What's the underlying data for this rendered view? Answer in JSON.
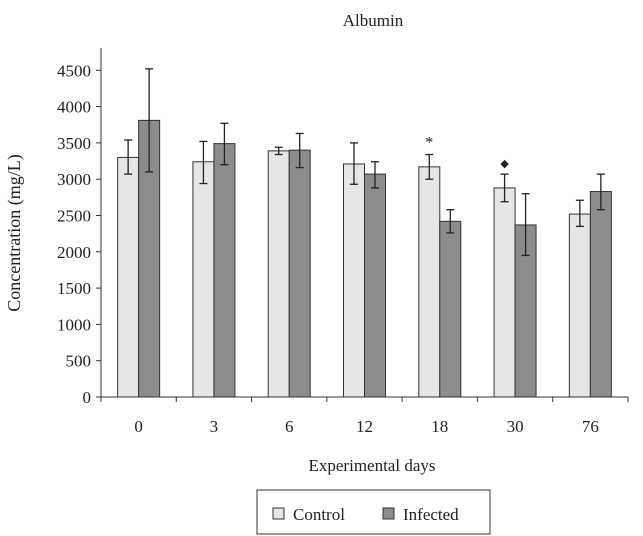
{
  "chart_data": {
    "type": "bar",
    "title": "Albumin",
    "xlabel": "Experimental days",
    "ylabel": "Concentration (mg/L)",
    "ylim": [
      0,
      5000
    ],
    "yticks": [
      0,
      500,
      1000,
      1500,
      2000,
      2500,
      3000,
      3500,
      4000,
      4500
    ],
    "categories": [
      "0",
      "3",
      "6",
      "12",
      "18",
      "30",
      "76"
    ],
    "series": [
      {
        "name": "Control",
        "color": "#e6e6e6",
        "values": [
          3300,
          3240,
          3390,
          3210,
          3170,
          2880,
          2520
        ],
        "err_low": [
          3070,
          2940,
          3340,
          2930,
          3000,
          2690,
          2350
        ],
        "err_high": [
          3540,
          3520,
          3440,
          3500,
          3340,
          3070,
          2710
        ]
      },
      {
        "name": "Infected",
        "color": "#8c8c8c",
        "values": [
          3810,
          3490,
          3400,
          3070,
          2420,
          2370,
          2830
        ],
        "err_low": [
          3100,
          3200,
          3160,
          2880,
          2260,
          1950,
          2580
        ],
        "err_high": [
          4520,
          3770,
          3630,
          3240,
          2580,
          2800,
          3070
        ]
      }
    ],
    "annotations": [
      {
        "category": "18",
        "series": "Control",
        "text": "*"
      },
      {
        "category": "30",
        "series": "Control",
        "text": "◆"
      }
    ],
    "legend": {
      "position": "bottom-center"
    },
    "grid": false
  }
}
